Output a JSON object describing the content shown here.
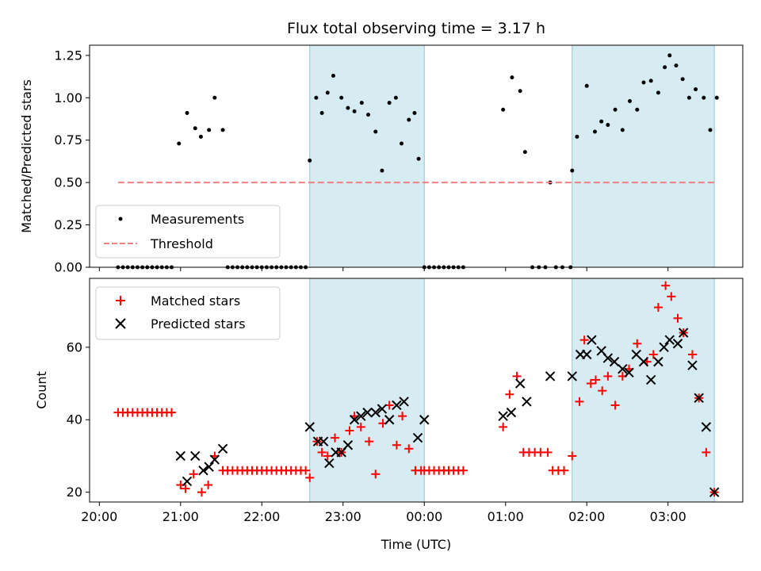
{
  "chart_data": [
    {
      "type": "scatter",
      "title": "Flux total observing time = 3.17 h",
      "ylabel": "Matched/Predicted stars",
      "xlabel": "",
      "x_unit": "hours since 20:00 UTC",
      "xlim": [
        19.88,
        27.92
      ],
      "ylim": [
        0.0,
        1.31
      ],
      "yticks": [
        0.0,
        0.25,
        0.5,
        0.75,
        1.0,
        1.25
      ],
      "ytick_labels": [
        "0.00",
        "0.25",
        "0.50",
        "0.75",
        "1.00",
        "1.25"
      ],
      "shaded_spans": [
        [
          22.59,
          24.0
        ],
        [
          25.82,
          27.57
        ]
      ],
      "shade_color": "#add8e6",
      "legend_position": "lower-left",
      "series": [
        {
          "name": "Measurements",
          "kind": "points",
          "color": "#000000",
          "x": [
            20.23,
            20.29,
            20.35,
            20.41,
            20.47,
            20.53,
            20.59,
            20.65,
            20.71,
            20.77,
            20.83,
            20.89,
            20.98,
            21.08,
            21.18,
            21.25,
            21.35,
            21.42,
            21.52,
            21.58,
            21.64,
            21.7,
            21.76,
            21.82,
            21.88,
            21.94,
            22.0,
            22.06,
            22.12,
            22.18,
            22.24,
            22.3,
            22.36,
            22.42,
            22.48,
            22.54,
            22.59,
            22.67,
            22.74,
            22.81,
            22.88,
            22.98,
            23.06,
            23.14,
            23.23,
            23.31,
            23.4,
            23.48,
            23.57,
            23.65,
            23.72,
            23.81,
            23.88,
            23.93,
            24.0,
            24.06,
            24.12,
            24.18,
            24.24,
            24.3,
            24.36,
            24.42,
            24.48,
            24.97,
            25.08,
            25.18,
            25.24,
            25.33,
            25.41,
            25.49,
            25.55,
            25.62,
            25.7,
            25.8,
            25.82,
            25.88,
            26.0,
            26.1,
            26.18,
            26.26,
            26.35,
            26.44,
            26.53,
            26.62,
            26.7,
            26.79,
            26.88,
            26.96,
            27.02,
            27.1,
            27.18,
            27.26,
            27.34,
            27.44,
            27.52,
            27.6
          ],
          "y": [
            0,
            0,
            0,
            0,
            0,
            0,
            0,
            0,
            0,
            0,
            0,
            0,
            0.73,
            0.91,
            0.82,
            0.77,
            0.81,
            1.0,
            0.81,
            0,
            0,
            0,
            0,
            0,
            0,
            0,
            0,
            0,
            0,
            0,
            0,
            0,
            0,
            0,
            0,
            0,
            0.63,
            1.0,
            0.91,
            1.03,
            1.13,
            1.0,
            0.94,
            0.92,
            0.97,
            0.9,
            0.8,
            0.57,
            0.97,
            1.0,
            0.73,
            0.87,
            0.91,
            0.64,
            0,
            0,
            0,
            0,
            0,
            0,
            0,
            0,
            0,
            0.93,
            1.12,
            1.04,
            0.68,
            0,
            0,
            0,
            0.5,
            0,
            0,
            0,
            0.57,
            0.77,
            1.07,
            0.8,
            0.86,
            0.84,
            0.93,
            0.81,
            0.98,
            0.93,
            1.09,
            1.1,
            1.03,
            1.18,
            1.25,
            1.19,
            1.11,
            1.0,
            1.05,
            1.0,
            0.81,
            1.0
          ]
        },
        {
          "name": "Threshold",
          "kind": "dashed-line",
          "color": "#f08080",
          "x": [
            20.23,
            27.57
          ],
          "y": [
            0.5,
            0.5
          ]
        }
      ]
    },
    {
      "type": "scatter",
      "title": "",
      "ylabel": "Count",
      "xlabel": "Time (UTC)",
      "x_unit": "hours since 20:00 UTC",
      "xlim": [
        19.88,
        27.92
      ],
      "ylim": [
        17.3,
        79.0
      ],
      "yticks": [
        20,
        40,
        60
      ],
      "ytick_labels": [
        "20",
        "40",
        "60"
      ],
      "xticks": [
        20,
        21,
        22,
        23,
        24,
        25,
        26,
        27
      ],
      "xtick_labels": [
        "20:00",
        "21:00",
        "22:00",
        "23:00",
        "00:00",
        "01:00",
        "02:00",
        "03:00"
      ],
      "shaded_spans": [
        [
          22.59,
          24.0
        ],
        [
          25.82,
          27.57
        ]
      ],
      "shade_color": "#add8e6",
      "legend_position": "upper-left",
      "series": [
        {
          "name": "Matched stars",
          "kind": "plus",
          "color": "#ff0000",
          "x": [
            20.23,
            20.29,
            20.35,
            20.41,
            20.47,
            20.53,
            20.59,
            20.65,
            20.71,
            20.77,
            20.83,
            20.89,
            21.0,
            21.06,
            21.16,
            21.26,
            21.34,
            21.42,
            21.52,
            21.58,
            21.64,
            21.7,
            21.76,
            21.82,
            21.88,
            21.94,
            22.0,
            22.06,
            22.12,
            22.18,
            22.24,
            22.3,
            22.36,
            22.42,
            22.48,
            22.54,
            22.59,
            22.68,
            22.74,
            22.81,
            22.9,
            22.98,
            23.08,
            23.14,
            23.22,
            23.32,
            23.4,
            23.49,
            23.57,
            23.66,
            23.73,
            23.81,
            23.89,
            23.96,
            24.0,
            24.06,
            24.12,
            24.18,
            24.24,
            24.3,
            24.36,
            24.42,
            24.48,
            24.97,
            25.05,
            25.14,
            25.22,
            25.29,
            25.36,
            25.43,
            25.52,
            25.58,
            25.65,
            25.72,
            25.82,
            25.91,
            25.97,
            26.05,
            26.11,
            26.19,
            26.26,
            26.35,
            26.44,
            26.52,
            26.62,
            26.74,
            26.82,
            26.88,
            26.97,
            27.04,
            27.12,
            27.19,
            27.3,
            27.38,
            27.47,
            27.57
          ],
          "y": [
            42,
            42,
            42,
            42,
            42,
            42,
            42,
            42,
            42,
            42,
            42,
            42,
            22,
            21,
            25,
            20,
            22,
            30,
            26,
            26,
            26,
            26,
            26,
            26,
            26,
            26,
            26,
            26,
            26,
            26,
            26,
            26,
            26,
            26,
            26,
            26,
            24,
            34,
            31,
            30,
            35,
            31,
            37,
            41,
            38,
            34,
            25,
            39,
            44,
            33,
            41,
            32,
            26,
            26,
            26,
            26,
            26,
            26,
            26,
            26,
            26,
            26,
            26,
            38,
            47,
            52,
            31,
            31,
            31,
            31,
            31,
            26,
            26,
            26,
            30,
            45,
            62,
            50,
            51,
            48,
            52,
            44,
            52,
            54,
            61,
            56,
            58,
            71,
            77,
            74,
            68,
            64,
            58,
            46,
            31,
            20
          ]
        },
        {
          "name": "Predicted stars",
          "kind": "x",
          "color": "#000000",
          "x": [
            21.0,
            21.08,
            21.18,
            21.28,
            21.35,
            21.42,
            21.52,
            22.59,
            22.69,
            22.76,
            22.83,
            22.91,
            22.98,
            23.06,
            23.14,
            23.22,
            23.3,
            23.4,
            23.48,
            23.57,
            23.66,
            23.75,
            23.92,
            24.0,
            24.97,
            25.07,
            25.18,
            25.26,
            25.55,
            25.82,
            25.92,
            26.0,
            26.06,
            26.18,
            26.26,
            26.34,
            26.44,
            26.52,
            26.61,
            26.7,
            26.79,
            26.88,
            26.95,
            27.02,
            27.12,
            27.19,
            27.3,
            27.38,
            27.47,
            27.57
          ],
          "y": [
            30,
            23,
            30,
            26,
            27,
            29,
            32,
            38,
            34,
            34,
            28,
            31,
            31,
            33,
            40,
            41,
            42,
            42,
            43,
            40,
            44,
            45,
            35,
            40,
            41,
            42,
            50,
            45,
            52,
            52,
            58,
            58,
            62,
            59,
            57,
            56,
            54,
            53,
            58,
            56,
            51,
            56,
            60,
            62,
            61,
            64,
            55,
            46,
            38,
            20
          ]
        }
      ]
    }
  ]
}
